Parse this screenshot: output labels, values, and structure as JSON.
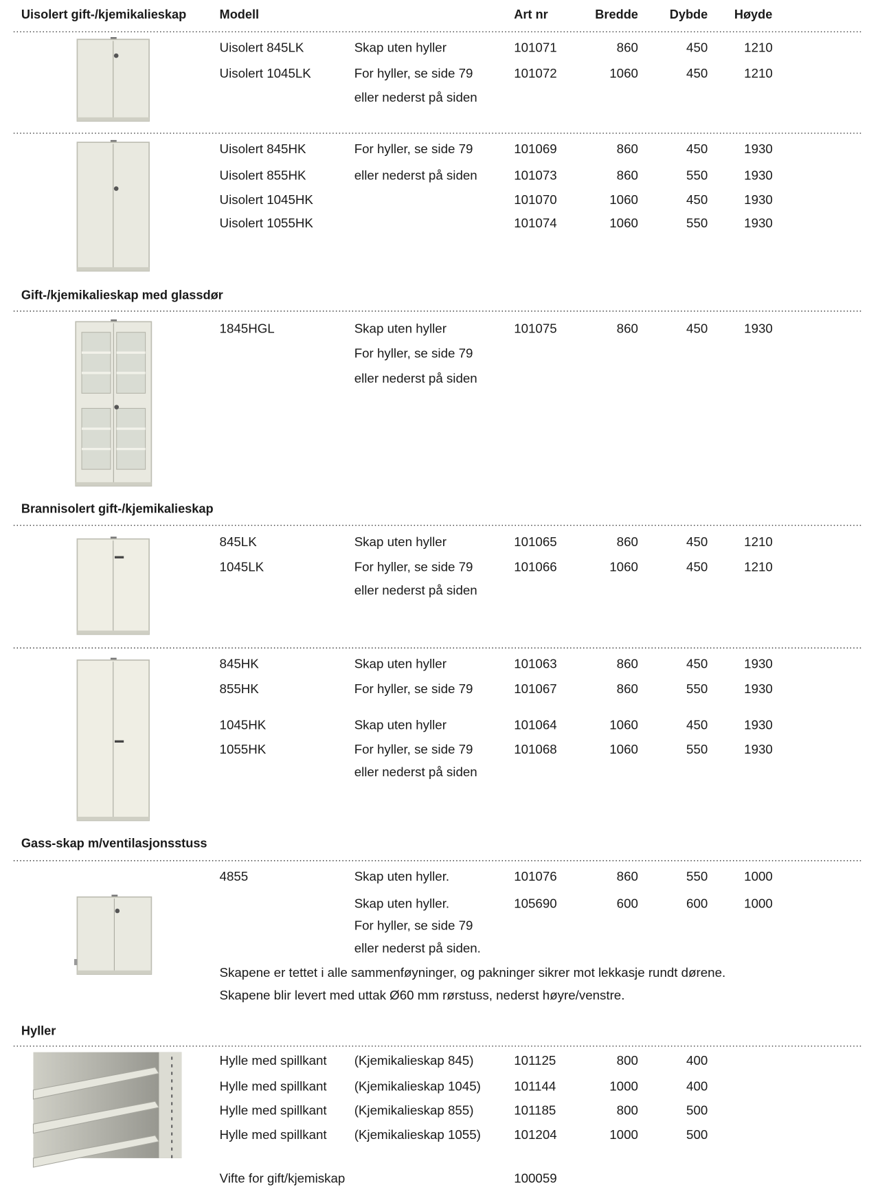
{
  "header": {
    "title": "Uisolert gift-/kjemikalieskap",
    "columns": [
      "Modell",
      "Art  nr",
      "Bredde",
      "Dybde",
      "Høyde"
    ]
  },
  "sections": [
    {
      "groups": [
        {
          "rows": [
            {
              "model": "Uisolert 845LK",
              "desc": "Skap uten hyller",
              "art_nr": 101071,
              "bredde": 860,
              "dybde": 450,
              "hoyde": 1210
            },
            {
              "model": "Uisolert 1045LK",
              "desc": "For hyller, se side 79",
              "art_nr": 101072,
              "bredde": 1060,
              "dybde": 450,
              "hoyde": 1210
            },
            {
              "desc": "eller nederst på siden"
            }
          ]
        },
        {
          "rows": [
            {
              "model": "Uisolert 845HK",
              "desc": "For hyller, se side 79",
              "art_nr": 101069,
              "bredde": 860,
              "dybde": 450,
              "hoyde": 1930
            },
            {
              "model": "Uisolert 855HK",
              "desc": "eller nederst på siden",
              "art_nr": 101073,
              "bredde": 860,
              "dybde": 550,
              "hoyde": 1930
            },
            {
              "model": "Uisolert 1045HK",
              "art_nr": 101070,
              "bredde": 1060,
              "dybde": 450,
              "hoyde": 1930
            },
            {
              "model": "Uisolert 1055HK",
              "art_nr": 101074,
              "bredde": 1060,
              "dybde": 550,
              "hoyde": 1930
            }
          ]
        }
      ]
    },
    {
      "title": "Gift-/kjemikalieskap med glassdør",
      "groups": [
        {
          "rows": [
            {
              "model": "1845HGL",
              "desc": "Skap uten hyller",
              "art_nr": 101075,
              "bredde": 860,
              "dybde": 450,
              "hoyde": 1930
            },
            {
              "desc": "For hyller, se side 79"
            },
            {
              "desc": "eller nederst på siden"
            }
          ]
        }
      ]
    },
    {
      "title": "Brannisolert gift-/kjemikalieskap",
      "groups": [
        {
          "rows": [
            {
              "model": "845LK",
              "desc": "Skap uten hyller",
              "art_nr": 101065,
              "bredde": 860,
              "dybde": 450,
              "hoyde": 1210
            },
            {
              "model": "1045LK",
              "desc": "For hyller, se side 79",
              "art_nr": 101066,
              "bredde": 1060,
              "dybde": 450,
              "hoyde": 1210
            },
            {
              "desc": "eller nederst på siden"
            }
          ]
        },
        {
          "rows": [
            {
              "model": "845HK",
              "desc": "Skap uten hyller",
              "art_nr": 101063,
              "bredde": 860,
              "dybde": 450,
              "hoyde": 1930
            },
            {
              "model": "855HK",
              "desc": "For hyller, se side 79",
              "art_nr": 101067,
              "bredde": 860,
              "dybde": 550,
              "hoyde": 1930
            },
            {
              "model": "1045HK",
              "desc": "Skap uten hyller",
              "art_nr": 101064,
              "bredde": 1060,
              "dybde": 450,
              "hoyde": 1930
            },
            {
              "model": "1055HK",
              "desc": "For hyller, se side 79",
              "art_nr": 101068,
              "bredde": 1060,
              "dybde": 550,
              "hoyde": 1930
            },
            {
              "desc": "eller nederst på siden"
            }
          ]
        }
      ]
    },
    {
      "title": "Gass-skap m/ventilasjonsstuss",
      "groups": [
        {
          "rows": [
            {
              "model": "4855",
              "desc": "Skap uten hyller.",
              "art_nr": 101076,
              "bredde": 860,
              "dybde": 550,
              "hoyde": 1000
            },
            {
              "desc": "Skap uten hyller.",
              "art_nr": 105690,
              "bredde": 600,
              "dybde": 600,
              "hoyde": 1000
            },
            {
              "desc": "For hyller, se side 79"
            },
            {
              "desc": "eller nederst på siden."
            }
          ],
          "notes": [
            "Skapene er tettet i alle sammenføyninger, og pakninger sikrer mot lekkasje rundt dørene.",
            "Skapene blir levert med uttak Ø60 mm rørstuss, nederst høyre/venstre."
          ]
        }
      ]
    },
    {
      "title": "Hyller",
      "groups": [
        {
          "rows": [
            {
              "model": "Hylle med spillkant",
              "desc": "(Kjemikalieskap 845)",
              "art_nr": 101125,
              "bredde": 800,
              "dybde": 400
            },
            {
              "model": "Hylle med spillkant",
              "desc": "(Kjemikalieskap 1045)",
              "art_nr": 101144,
              "bredde": 1000,
              "dybde": 400
            },
            {
              "model": "Hylle med spillkant",
              "desc": "(Kjemikalieskap 855)",
              "art_nr": 101185,
              "bredde": 800,
              "dybde": 500
            },
            {
              "model": "Hylle med spillkant",
              "desc": "(Kjemikalieskap 1055)",
              "art_nr": 101204,
              "bredde": 1000,
              "dybde": 500
            },
            {
              "model": "Vifte for gift/kjemiskap",
              "art_nr": 100059
            }
          ]
        }
      ]
    }
  ]
}
